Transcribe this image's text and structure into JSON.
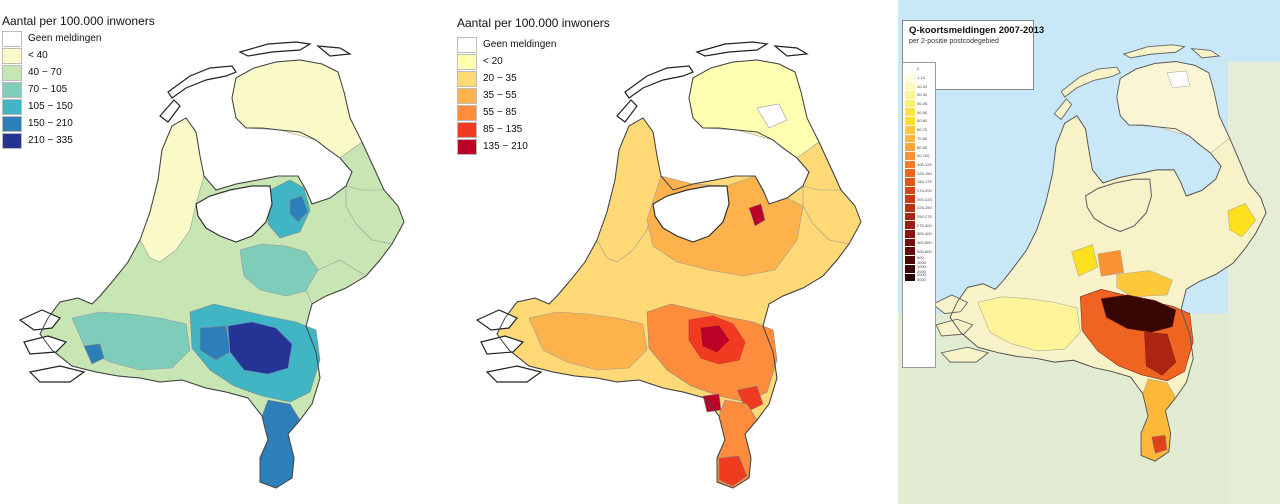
{
  "panel1": {
    "title": "Aantal per 100.000 inwoners",
    "legend": [
      {
        "label": "Geen meldingen",
        "color": "#ffffff"
      },
      {
        "label": "< 40",
        "color": "#fafac8"
      },
      {
        "label": "40 − 70",
        "color": "#c7e6b4"
      },
      {
        "label": "70 − 105",
        "color": "#7ecdbb"
      },
      {
        "label": "105 − 150",
        "color": "#40b5c4"
      },
      {
        "label": "150 − 210",
        "color": "#2c7fb8"
      },
      {
        "label": "210 − 335",
        "color": "#253494"
      }
    ]
  },
  "panel2": {
    "title": "Aantal per 100.000 inwoners",
    "legend": [
      {
        "label": "Geen meldingen",
        "color": "#ffffff"
      },
      {
        "label": "< 20",
        "color": "#ffffb2"
      },
      {
        "label": "20 − 35",
        "color": "#fed976"
      },
      {
        "label": "35 − 55",
        "color": "#feb24c"
      },
      {
        "label": "55 − 85",
        "color": "#fd8d3c"
      },
      {
        "label": "85 − 135",
        "color": "#f03b20"
      },
      {
        "label": "135 − 210",
        "color": "#bd0026"
      }
    ]
  },
  "panel3": {
    "title": "Q-koortsmeldingen 2007-2013",
    "subtitle": "per 2-positie postcodegebied",
    "ramp": [
      {
        "label": "0",
        "color": "#ffffff"
      },
      {
        "label": "1-10",
        "color": "#fffde0"
      },
      {
        "label": "10-20",
        "color": "#fff9c0"
      },
      {
        "label": "20-30",
        "color": "#fff49a"
      },
      {
        "label": "30-40",
        "color": "#ffee70"
      },
      {
        "label": "40-50",
        "color": "#ffe340"
      },
      {
        "label": "50-60",
        "color": "#fde01e"
      },
      {
        "label": "60-70",
        "color": "#fdc93a"
      },
      {
        "label": "70-80",
        "color": "#fdb83a"
      },
      {
        "label": "80-90",
        "color": "#fca636"
      },
      {
        "label": "90-100",
        "color": "#fb9130"
      },
      {
        "label": "100-125",
        "color": "#f77a28"
      },
      {
        "label": "125-150",
        "color": "#f06422"
      },
      {
        "label": "150-175",
        "color": "#e8521e"
      },
      {
        "label": "175-200",
        "color": "#dd421a"
      },
      {
        "label": "200-225",
        "color": "#cf3617"
      },
      {
        "label": "225-250",
        "color": "#bf2c14"
      },
      {
        "label": "250-275",
        "color": "#ad2412"
      },
      {
        "label": "275-300",
        "color": "#9a1d10"
      },
      {
        "label": "300-400",
        "color": "#86170e"
      },
      {
        "label": "400-500",
        "color": "#72120c"
      },
      {
        "label": "500-600",
        "color": "#5e0e0a"
      },
      {
        "label": "600-1000",
        "color": "#4a0a08"
      },
      {
        "label": "1000-2000",
        "color": "#380705"
      },
      {
        "label": "2000-3000",
        "color": "#260403"
      }
    ]
  }
}
